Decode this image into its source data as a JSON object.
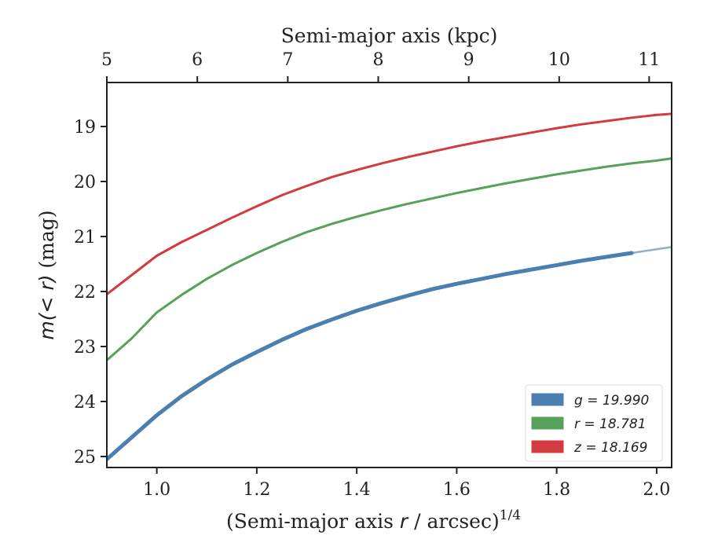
{
  "chart_data": {
    "type": "line",
    "xlabel": "(Semi-major axis r / arcsec)^{1/4}",
    "xlabel_parts": {
      "prefix": "(Semi-major axis ",
      "var": "r",
      "mid": " / arcsec)",
      "sup": "1/4"
    },
    "top_xlabel": "Semi-major axis (kpc)",
    "ylabel": "m(<r) (mag)",
    "ylabel_parts": {
      "main": "m(< r)",
      "unit": " (mag)"
    },
    "xlim": [
      0.9,
      2.03
    ],
    "ylim": [
      25.2,
      18.2
    ],
    "y_inverted": true,
    "x_ticks": [
      "1.0",
      "1.2",
      "1.4",
      "1.6",
      "1.8",
      "2.0"
    ],
    "x_tick_values": [
      1.0,
      1.2,
      1.4,
      1.6,
      1.8,
      2.0
    ],
    "y_ticks": [
      "19",
      "20",
      "21",
      "22",
      "23",
      "24",
      "25"
    ],
    "y_tick_values": [
      19,
      20,
      21,
      22,
      23,
      24,
      25
    ],
    "top_ticks": [
      "5",
      "6",
      "7",
      "8",
      "9",
      "10",
      "11"
    ],
    "top_tick_values": [
      5,
      6,
      7,
      8,
      9,
      10,
      11
    ],
    "top_tick_positions_x": [
      0.9,
      1.081,
      1.262,
      1.443,
      1.624,
      1.805,
      1.985
    ],
    "legend_position": "lower right",
    "series": [
      {
        "name": "g = 19.990",
        "var": "g",
        "value": "19.990",
        "color": "#4a7fb0",
        "width": 5,
        "x": [
          0.9,
          0.95,
          1.0,
          1.05,
          1.1,
          1.15,
          1.2,
          1.25,
          1.3,
          1.35,
          1.4,
          1.45,
          1.5,
          1.55,
          1.6,
          1.65,
          1.7,
          1.75,
          1.8,
          1.85,
          1.9,
          1.95
        ],
        "y": [
          25.05,
          24.65,
          24.25,
          23.9,
          23.6,
          23.33,
          23.1,
          22.88,
          22.68,
          22.51,
          22.35,
          22.21,
          22.08,
          21.96,
          21.86,
          21.77,
          21.68,
          21.6,
          21.52,
          21.44,
          21.37,
          21.3
        ],
        "extension": {
          "x": [
            1.95,
            2.03
          ],
          "y": [
            21.3,
            21.19
          ],
          "color": "#8fb0cc"
        }
      },
      {
        "name": "r = 18.781",
        "var": "r",
        "value": "18.781",
        "color": "#57a25a",
        "width": 3,
        "x": [
          0.9,
          0.95,
          1.0,
          1.05,
          1.1,
          1.15,
          1.2,
          1.25,
          1.3,
          1.35,
          1.4,
          1.45,
          1.5,
          1.55,
          1.6,
          1.65,
          1.7,
          1.75,
          1.8,
          1.85,
          1.9,
          1.95,
          2.0,
          2.03
        ],
        "y": [
          23.25,
          22.85,
          22.38,
          22.06,
          21.77,
          21.52,
          21.3,
          21.1,
          20.92,
          20.77,
          20.64,
          20.52,
          20.41,
          20.31,
          20.21,
          20.12,
          20.03,
          19.95,
          19.87,
          19.8,
          19.73,
          19.67,
          19.62,
          19.58
        ]
      },
      {
        "name": "z = 18.169",
        "var": "z",
        "value": "18.169",
        "color": "#d33b3f",
        "width": 3,
        "x": [
          0.9,
          0.95,
          1.0,
          1.05,
          1.1,
          1.15,
          1.2,
          1.25,
          1.3,
          1.35,
          1.4,
          1.45,
          1.5,
          1.55,
          1.6,
          1.65,
          1.7,
          1.75,
          1.8,
          1.85,
          1.9,
          1.95,
          2.0,
          2.03
        ],
        "y": [
          22.05,
          21.7,
          21.35,
          21.1,
          20.88,
          20.66,
          20.45,
          20.25,
          20.08,
          19.92,
          19.79,
          19.67,
          19.56,
          19.46,
          19.36,
          19.27,
          19.19,
          19.11,
          19.03,
          18.96,
          18.9,
          18.84,
          18.79,
          18.77
        ]
      }
    ],
    "colors": {
      "axis": "#222222",
      "background": "#ffffff"
    }
  }
}
